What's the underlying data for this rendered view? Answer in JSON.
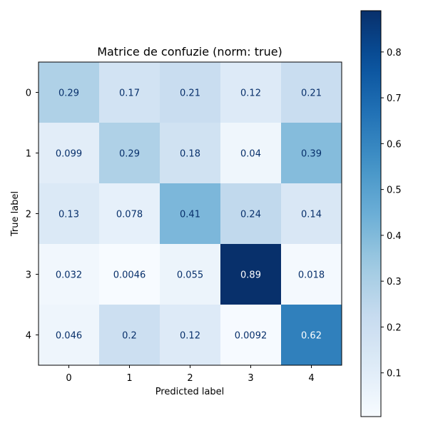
{
  "chart_data": {
    "type": "heatmap",
    "title": "Matrice de confuzie (norm: true)",
    "xlabel": "Predicted label",
    "ylabel": "True label",
    "x_categories": [
      "0",
      "1",
      "2",
      "3",
      "4"
    ],
    "y_categories": [
      "0",
      "1",
      "2",
      "3",
      "4"
    ],
    "values": [
      [
        0.29,
        0.17,
        0.21,
        0.12,
        0.21
      ],
      [
        0.099,
        0.29,
        0.18,
        0.04,
        0.39
      ],
      [
        0.13,
        0.078,
        0.41,
        0.24,
        0.14
      ],
      [
        0.032,
        0.0046,
        0.055,
        0.89,
        0.018
      ],
      [
        0.046,
        0.2,
        0.12,
        0.0092,
        0.62
      ]
    ],
    "cell_labels": [
      [
        "0.29",
        "0.17",
        "0.21",
        "0.12",
        "0.21"
      ],
      [
        "0.099",
        "0.29",
        "0.18",
        "0.04",
        "0.39"
      ],
      [
        "0.13",
        "0.078",
        "0.41",
        "0.24",
        "0.14"
      ],
      [
        "0.032",
        "0.0046",
        "0.055",
        "0.89",
        "0.018"
      ],
      [
        "0.046",
        "0.2",
        "0.12",
        "0.0092",
        "0.62"
      ]
    ],
    "colormap": "Blues",
    "colorbar": {
      "range": [
        0.0046,
        0.89
      ],
      "ticks": [
        0.1,
        0.2,
        0.3,
        0.4,
        0.5,
        0.6,
        0.7,
        0.8
      ],
      "tick_labels": [
        "0.1",
        "0.2",
        "0.3",
        "0.4",
        "0.5",
        "0.6",
        "0.7",
        "0.8"
      ]
    },
    "grid": false,
    "text_color_dark": "#08306b",
    "text_color_light": "#ffffff"
  }
}
